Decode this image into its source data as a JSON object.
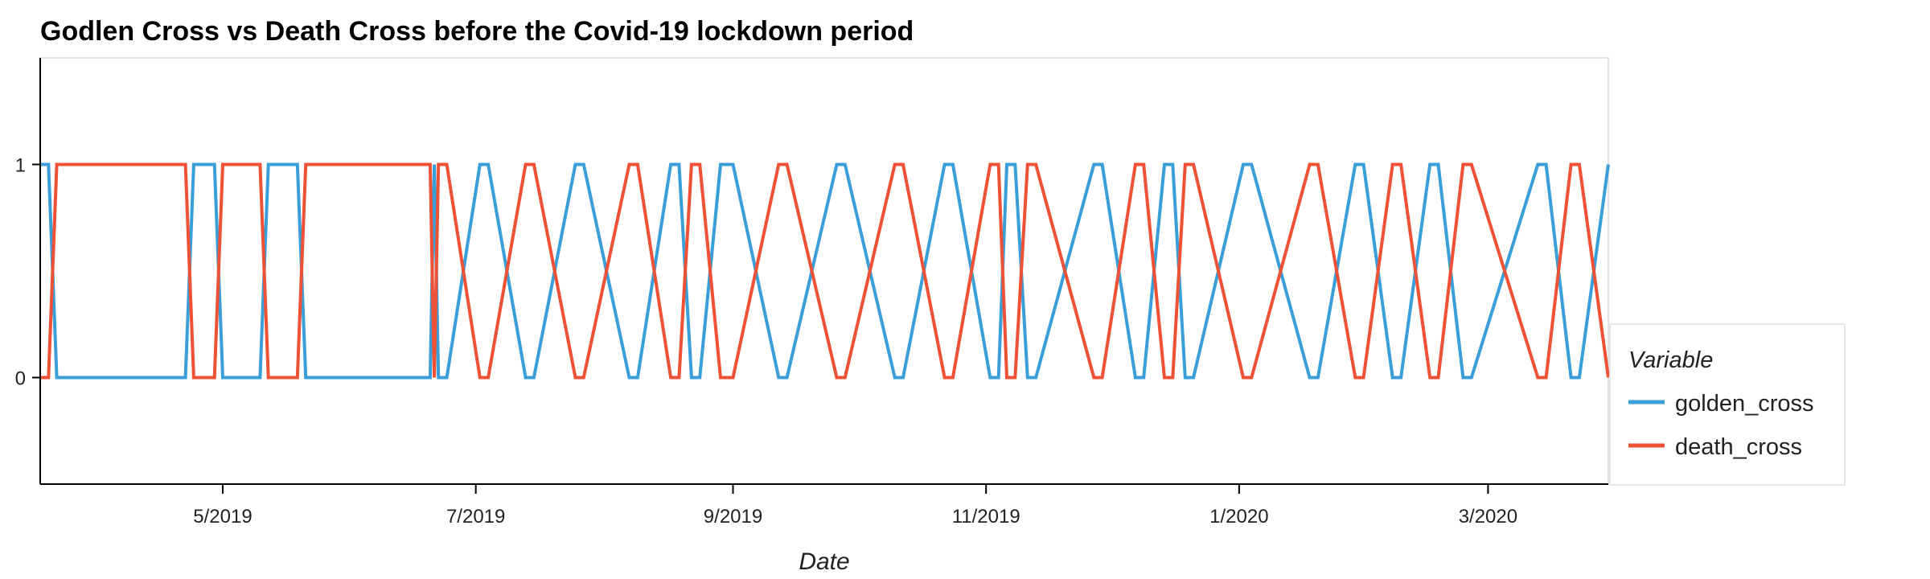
{
  "chart_data": {
    "type": "line",
    "title": "Godlen Cross vs Death Cross before the Covid-19 lockdown period",
    "xlabel": "Date",
    "ylabel": "",
    "x_range": [
      "2019-03-18",
      "2020-03-30"
    ],
    "ylim": [
      -0.5,
      1.5
    ],
    "y_ticks": [
      0,
      1
    ],
    "x_ticks": [
      {
        "date": "2019-05-01",
        "label": "5/2019"
      },
      {
        "date": "2019-07-01",
        "label": "7/2019"
      },
      {
        "date": "2019-09-01",
        "label": "9/2019"
      },
      {
        "date": "2019-11-01",
        "label": "11/2019"
      },
      {
        "date": "2020-01-01",
        "label": "1/2020"
      },
      {
        "date": "2020-03-01",
        "label": "3/2020"
      }
    ],
    "grid": false,
    "legend": {
      "title": "Variable",
      "position": "right"
    },
    "series_step_note": "death_cross = 1 - golden_cross",
    "series": [
      {
        "name": "golden_cross",
        "color": "#3a9fd8",
        "x": [
          "2019-03-18",
          "2019-03-20",
          "2019-03-22",
          "2019-04-22",
          "2019-04-24",
          "2019-04-29",
          "2019-05-01",
          "2019-05-10",
          "2019-05-12",
          "2019-05-19",
          "2019-05-21",
          "2019-06-20",
          "2019-06-21",
          "2019-06-22",
          "2019-06-24",
          "2019-07-02",
          "2019-07-04",
          "2019-07-13",
          "2019-07-15",
          "2019-07-25",
          "2019-07-27",
          "2019-08-07",
          "2019-08-09",
          "2019-08-17",
          "2019-08-19",
          "2019-08-22",
          "2019-08-24",
          "2019-08-29",
          "2019-09-01",
          "2019-09-12",
          "2019-09-14",
          "2019-09-26",
          "2019-09-28",
          "2019-10-10",
          "2019-10-12",
          "2019-10-22",
          "2019-10-24",
          "2019-11-02",
          "2019-11-04",
          "2019-11-06",
          "2019-11-08",
          "2019-11-11",
          "2019-11-13",
          "2019-11-27",
          "2019-11-29",
          "2019-12-07",
          "2019-12-09",
          "2019-12-14",
          "2019-12-16",
          "2019-12-19",
          "2019-12-21",
          "2020-01-02",
          "2020-01-04",
          "2020-01-18",
          "2020-01-20",
          "2020-01-29",
          "2020-01-31",
          "2020-02-07",
          "2020-02-09",
          "2020-02-16",
          "2020-02-18",
          "2020-02-24",
          "2020-02-26",
          "2020-03-13",
          "2020-03-15",
          "2020-03-21",
          "2020-03-23",
          "2020-03-30"
        ],
        "y": [
          1,
          1,
          0,
          0,
          1,
          1,
          0,
          0,
          1,
          1,
          0,
          0,
          1,
          0,
          0,
          1,
          1,
          0,
          0,
          1,
          1,
          0,
          0,
          1,
          1,
          0,
          0,
          1,
          1,
          0,
          0,
          1,
          1,
          0,
          0,
          1,
          1,
          0,
          0,
          1,
          1,
          0,
          0,
          1,
          1,
          0,
          0,
          1,
          1,
          0,
          0,
          1,
          1,
          0,
          0,
          1,
          1,
          0,
          0,
          1,
          1,
          0,
          0,
          1,
          1,
          0,
          0,
          1
        ],
        "values_note": "approximate step series, values 0/1"
      },
      {
        "name": "death_cross",
        "color": "#ee5135",
        "x": [
          "2019-03-18",
          "2019-03-20",
          "2019-03-22",
          "2019-04-22",
          "2019-04-24",
          "2019-04-29",
          "2019-05-01",
          "2019-05-10",
          "2019-05-12",
          "2019-05-19",
          "2019-05-21",
          "2019-06-20",
          "2019-06-21",
          "2019-06-22",
          "2019-06-24",
          "2019-07-02",
          "2019-07-04",
          "2019-07-13",
          "2019-07-15",
          "2019-07-25",
          "2019-07-27",
          "2019-08-07",
          "2019-08-09",
          "2019-08-17",
          "2019-08-19",
          "2019-08-22",
          "2019-08-24",
          "2019-08-29",
          "2019-09-01",
          "2019-09-12",
          "2019-09-14",
          "2019-09-26",
          "2019-09-28",
          "2019-10-10",
          "2019-10-12",
          "2019-10-22",
          "2019-10-24",
          "2019-11-02",
          "2019-11-04",
          "2019-11-06",
          "2019-11-08",
          "2019-11-11",
          "2019-11-13",
          "2019-11-27",
          "2019-11-29",
          "2019-12-07",
          "2019-12-09",
          "2019-12-14",
          "2019-12-16",
          "2019-12-19",
          "2019-12-21",
          "2020-01-02",
          "2020-01-04",
          "2020-01-18",
          "2020-01-20",
          "2020-01-29",
          "2020-01-31",
          "2020-02-07",
          "2020-02-09",
          "2020-02-16",
          "2020-02-18",
          "2020-02-24",
          "2020-02-26",
          "2020-03-13",
          "2020-03-15",
          "2020-03-21",
          "2020-03-23",
          "2020-03-30"
        ],
        "y": [
          0,
          0,
          1,
          1,
          0,
          0,
          1,
          1,
          0,
          0,
          1,
          1,
          0,
          1,
          1,
          0,
          0,
          1,
          1,
          0,
          0,
          1,
          1,
          0,
          0,
          1,
          1,
          0,
          0,
          1,
          1,
          0,
          0,
          1,
          1,
          0,
          0,
          1,
          1,
          0,
          0,
          1,
          1,
          0,
          0,
          1,
          1,
          0,
          0,
          1,
          1,
          0,
          0,
          1,
          1,
          0,
          0,
          1,
          1,
          0,
          0,
          1,
          1,
          0,
          0,
          1,
          1,
          0
        ]
      }
    ]
  }
}
